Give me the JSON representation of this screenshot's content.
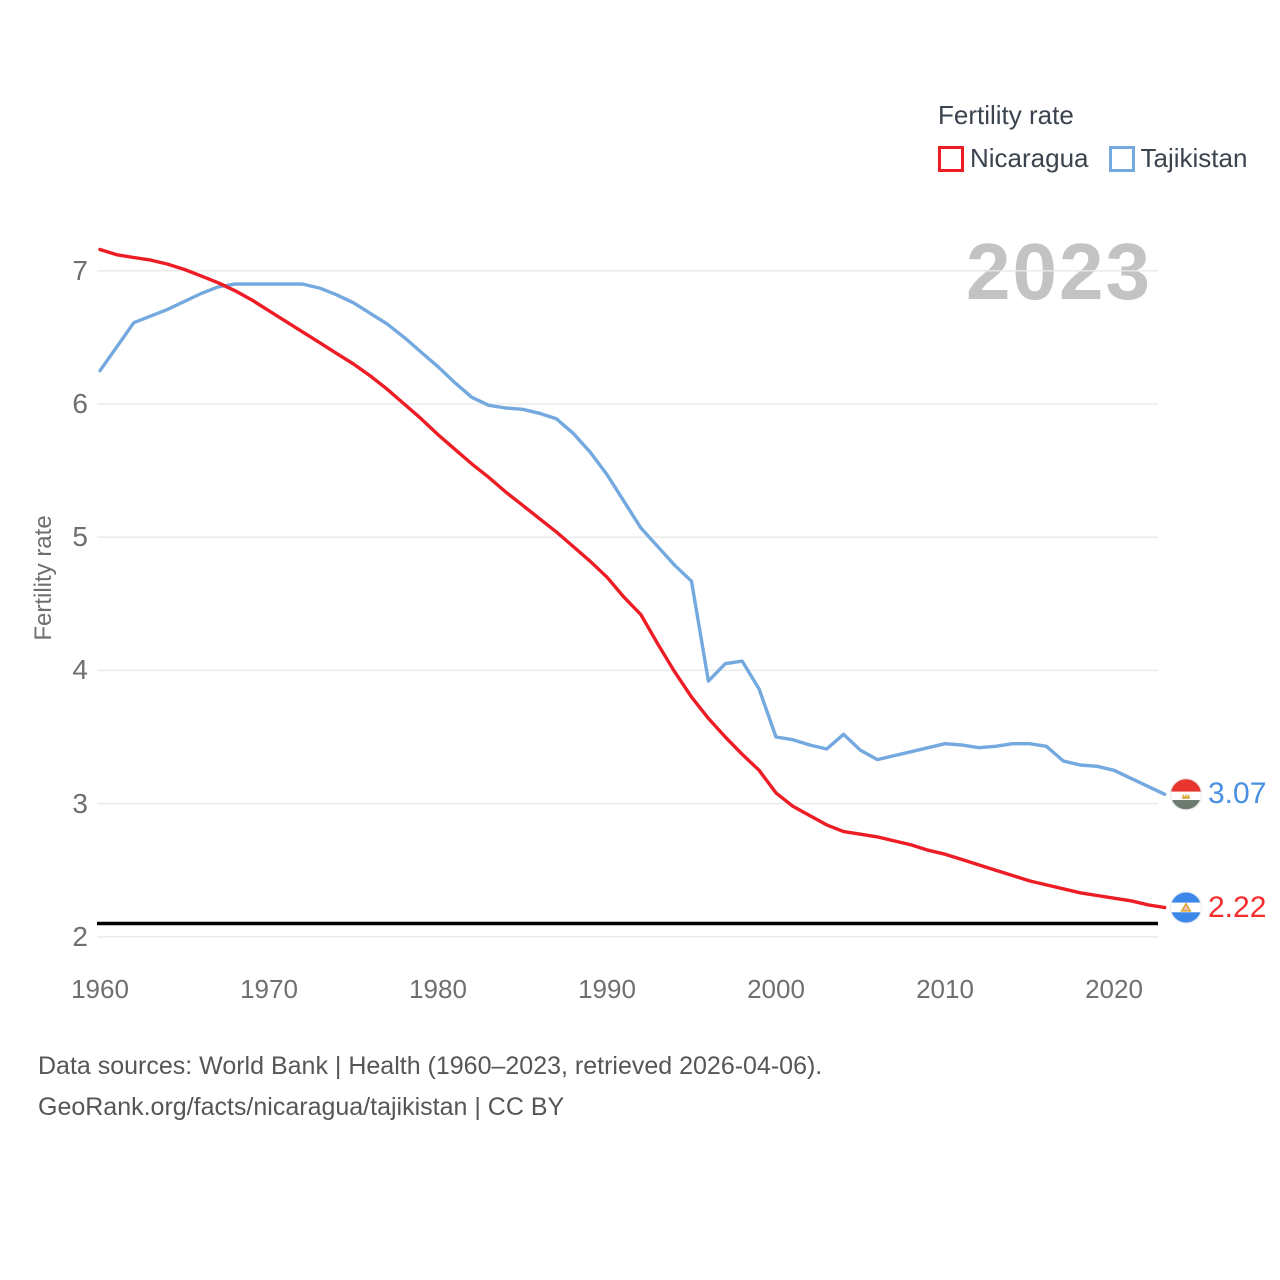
{
  "legend": {
    "title": "Fertility rate",
    "items": [
      {
        "label": "Nicaragua",
        "color": "#ee1c25"
      },
      {
        "label": "Tajikistan",
        "color": "#74a9e0"
      }
    ]
  },
  "watermark": "2023",
  "y_axis_title": "Fertility rate",
  "end_labels": [
    {
      "series": "Tajikistan",
      "text": "3.07",
      "value": 3.07,
      "color": "#4a90e2",
      "flag": "tajikistan"
    },
    {
      "series": "Nicaragua",
      "text": "2.22",
      "value": 2.22,
      "color": "#f42d2d",
      "flag": "nicaragua"
    }
  ],
  "footer": {
    "line1": "Data sources: World Bank | Health (1960–2023, retrieved 2026-04-06).",
    "line2": "GeoRank.org/facts/nicaragua/tajikistan | CC BY"
  },
  "chart_data": {
    "type": "line",
    "title": "Fertility rate",
    "xlabel": "",
    "ylabel": "Fertility rate",
    "x_start": 1960,
    "x_end": 2023,
    "x_step": 1,
    "ylim": [
      2,
      7.3
    ],
    "x_ticks": [
      1960,
      1970,
      1980,
      1990,
      2000,
      2010,
      2020
    ],
    "y_ticks": [
      2,
      3,
      4,
      5,
      6,
      7
    ],
    "grid": "horizontal",
    "legend_position": "top-right",
    "reference_line": {
      "value": 2.1,
      "color": "#000000"
    },
    "series": [
      {
        "name": "Nicaragua",
        "color": "#ee1c25",
        "end_value": 2.22,
        "values": [
          7.16,
          7.12,
          7.1,
          7.08,
          7.05,
          7.01,
          6.96,
          6.91,
          6.85,
          6.78,
          6.7,
          6.62,
          6.54,
          6.46,
          6.38,
          6.3,
          6.21,
          6.11,
          6.0,
          5.89,
          5.77,
          5.66,
          5.55,
          5.45,
          5.34,
          5.24,
          5.14,
          5.04,
          4.93,
          4.82,
          4.7,
          4.55,
          4.42,
          4.2,
          3.99,
          3.8,
          3.64,
          3.5,
          3.37,
          3.25,
          3.08,
          2.98,
          2.91,
          2.84,
          2.79,
          2.77,
          2.75,
          2.72,
          2.69,
          2.65,
          2.62,
          2.58,
          2.54,
          2.5,
          2.46,
          2.42,
          2.39,
          2.36,
          2.33,
          2.31,
          2.29,
          2.27,
          2.24,
          2.22
        ]
      },
      {
        "name": "Tajikistan",
        "color": "#74a9e0",
        "end_value": 3.07,
        "values": [
          6.25,
          6.43,
          6.61,
          6.66,
          6.71,
          6.77,
          6.83,
          6.88,
          6.9,
          6.9,
          6.9,
          6.9,
          6.9,
          6.87,
          6.82,
          6.76,
          6.68,
          6.6,
          6.5,
          6.39,
          6.28,
          6.16,
          6.05,
          5.99,
          5.97,
          5.96,
          5.93,
          5.89,
          5.78,
          5.64,
          5.47,
          5.27,
          5.07,
          4.93,
          4.79,
          4.67,
          3.92,
          4.05,
          4.07,
          3.86,
          3.5,
          3.48,
          3.44,
          3.41,
          3.52,
          3.4,
          3.33,
          3.36,
          3.39,
          3.42,
          3.45,
          3.44,
          3.42,
          3.43,
          3.45,
          3.45,
          3.43,
          3.32,
          3.29,
          3.28,
          3.25,
          3.19,
          3.13,
          3.07
        ]
      }
    ]
  }
}
